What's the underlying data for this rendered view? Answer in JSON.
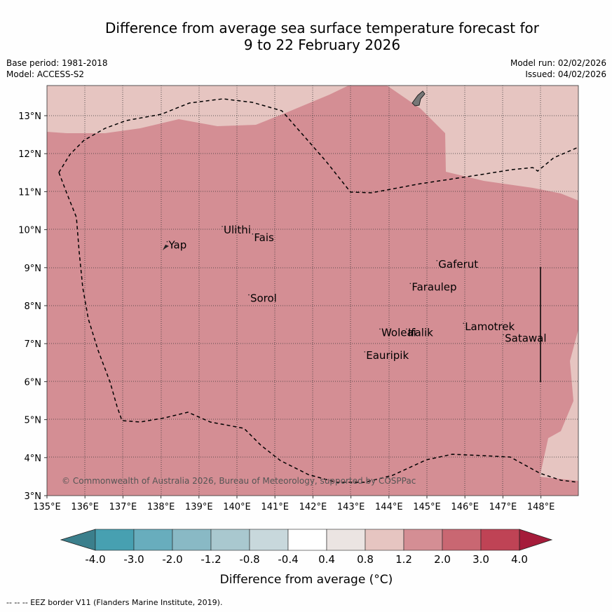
{
  "title_line1": "Difference from average sea surface temperature forecast for",
  "title_line2": "9 to 22 February 2026",
  "base_period": "Base period: 1981-2018",
  "model": "Model: ACCESS-S2",
  "model_run": "Model run: 02/02/2026",
  "issued": "Issued: 04/02/2026",
  "copyright": "© Commonwealth of Australia 2026, Bureau of Meteorology, supported by COSPPac",
  "footer": "--  --  -- EEZ border V11 (Flanders Marine Institute, 2019).",
  "map": {
    "lon_range": [
      135,
      149
    ],
    "lat_range": [
      3,
      13.8
    ],
    "lon_ticks": [
      "135°E",
      "136°E",
      "137°E",
      "138°E",
      "139°E",
      "140°E",
      "141°E",
      "142°E",
      "143°E",
      "144°E",
      "145°E",
      "146°E",
      "147°E",
      "148°E"
    ],
    "lat_ticks": [
      "3°N",
      "4°N",
      "5°N",
      "6°N",
      "7°N",
      "8°N",
      "9°N",
      "10°N",
      "11°N",
      "12°N",
      "13°N"
    ],
    "places": [
      {
        "name": "Yap",
        "lon": 138.2,
        "lat": 9.5
      },
      {
        "name": "Ulithi",
        "lon": 139.65,
        "lat": 9.9
      },
      {
        "name": "Fais",
        "lon": 140.45,
        "lat": 9.7
      },
      {
        "name": "Gaferut",
        "lon": 145.3,
        "lat": 9.0
      },
      {
        "name": "Faraulep",
        "lon": 144.6,
        "lat": 8.4
      },
      {
        "name": "Sorol",
        "lon": 140.35,
        "lat": 8.1
      },
      {
        "name": "Lamotrek",
        "lon": 146.0,
        "lat": 7.35
      },
      {
        "name": "Woleai",
        "lon": 143.8,
        "lat": 7.2
      },
      {
        "name": "Ifalik",
        "lon": 144.5,
        "lat": 7.2
      },
      {
        "name": "Satawal",
        "lon": 147.05,
        "lat": 7.05
      },
      {
        "name": "Eauripik",
        "lon": 143.4,
        "lat": 6.6
      }
    ]
  },
  "colorbar": {
    "tick_labels": [
      "-4.0",
      "-3.0",
      "-2.0",
      "-1.2",
      "-0.8",
      "-0.4",
      "0.4",
      "0.8",
      "1.2",
      "2.0",
      "3.0",
      "4.0"
    ],
    "colors": [
      "#3b7f8c",
      "#47a0b1",
      "#68adbd",
      "#89b9c5",
      "#a9c8cf",
      "#c8d8dc",
      "#ffffff",
      "#ebe4e2",
      "#e6c5c1",
      "#d48e94",
      "#c96772",
      "#bf4355",
      "#a51c3a"
    ],
    "label": "Difference from average (°C)"
  }
}
